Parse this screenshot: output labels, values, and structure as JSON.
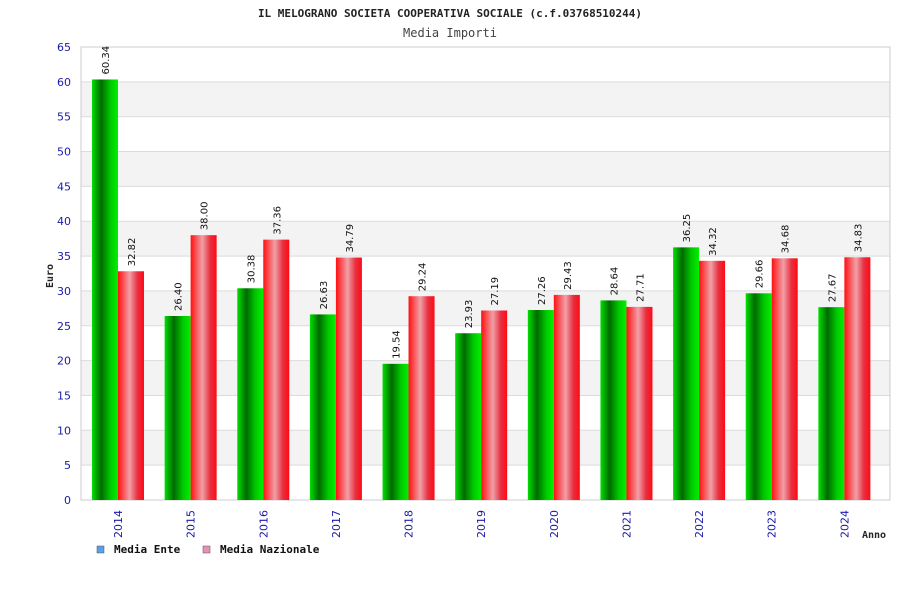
{
  "chart_data": {
    "type": "bar",
    "title": "IL MELOGRANO SOCIETA COOPERATIVA SOCIALE (c.f.03768510244)",
    "subtitle": "Media Importi",
    "xlabel": "Anno",
    "ylabel": "Euro",
    "ylim": [
      0,
      65
    ],
    "y_ticks": [
      "0",
      "5",
      "10",
      "15",
      "20",
      "25",
      "30",
      "35",
      "40",
      "45",
      "50",
      "55",
      "60",
      "65"
    ],
    "grid": true,
    "legend_position": "bottom-left",
    "categories": [
      "2014",
      "2015",
      "2016",
      "2017",
      "2018",
      "2019",
      "2020",
      "2021",
      "2022",
      "2023",
      "2024"
    ],
    "series": [
      {
        "name": "Media Ente",
        "color": "#00b400",
        "legend_color": "#5aa0e6",
        "values": [
          60.34,
          26.4,
          30.38,
          26.63,
          19.54,
          23.93,
          27.26,
          28.64,
          36.25,
          29.66,
          27.67
        ],
        "labels": [
          "60.34",
          "26.40",
          "30.38",
          "26.63",
          "19.54",
          "23.93",
          "27.26",
          "28.64",
          "36.25",
          "29.66",
          "27.67"
        ]
      },
      {
        "name": "Media Nazionale",
        "color": "#e8202a",
        "legend_color": "#e890b8",
        "values": [
          32.82,
          38.0,
          37.36,
          34.79,
          29.24,
          27.19,
          29.43,
          27.71,
          34.32,
          34.68,
          34.83
        ],
        "labels": [
          "32.82",
          "38.00",
          "37.36",
          "34.79",
          "29.24",
          "27.19",
          "29.43",
          "27.71",
          "34.32",
          "34.68",
          "34.83"
        ]
      }
    ]
  }
}
